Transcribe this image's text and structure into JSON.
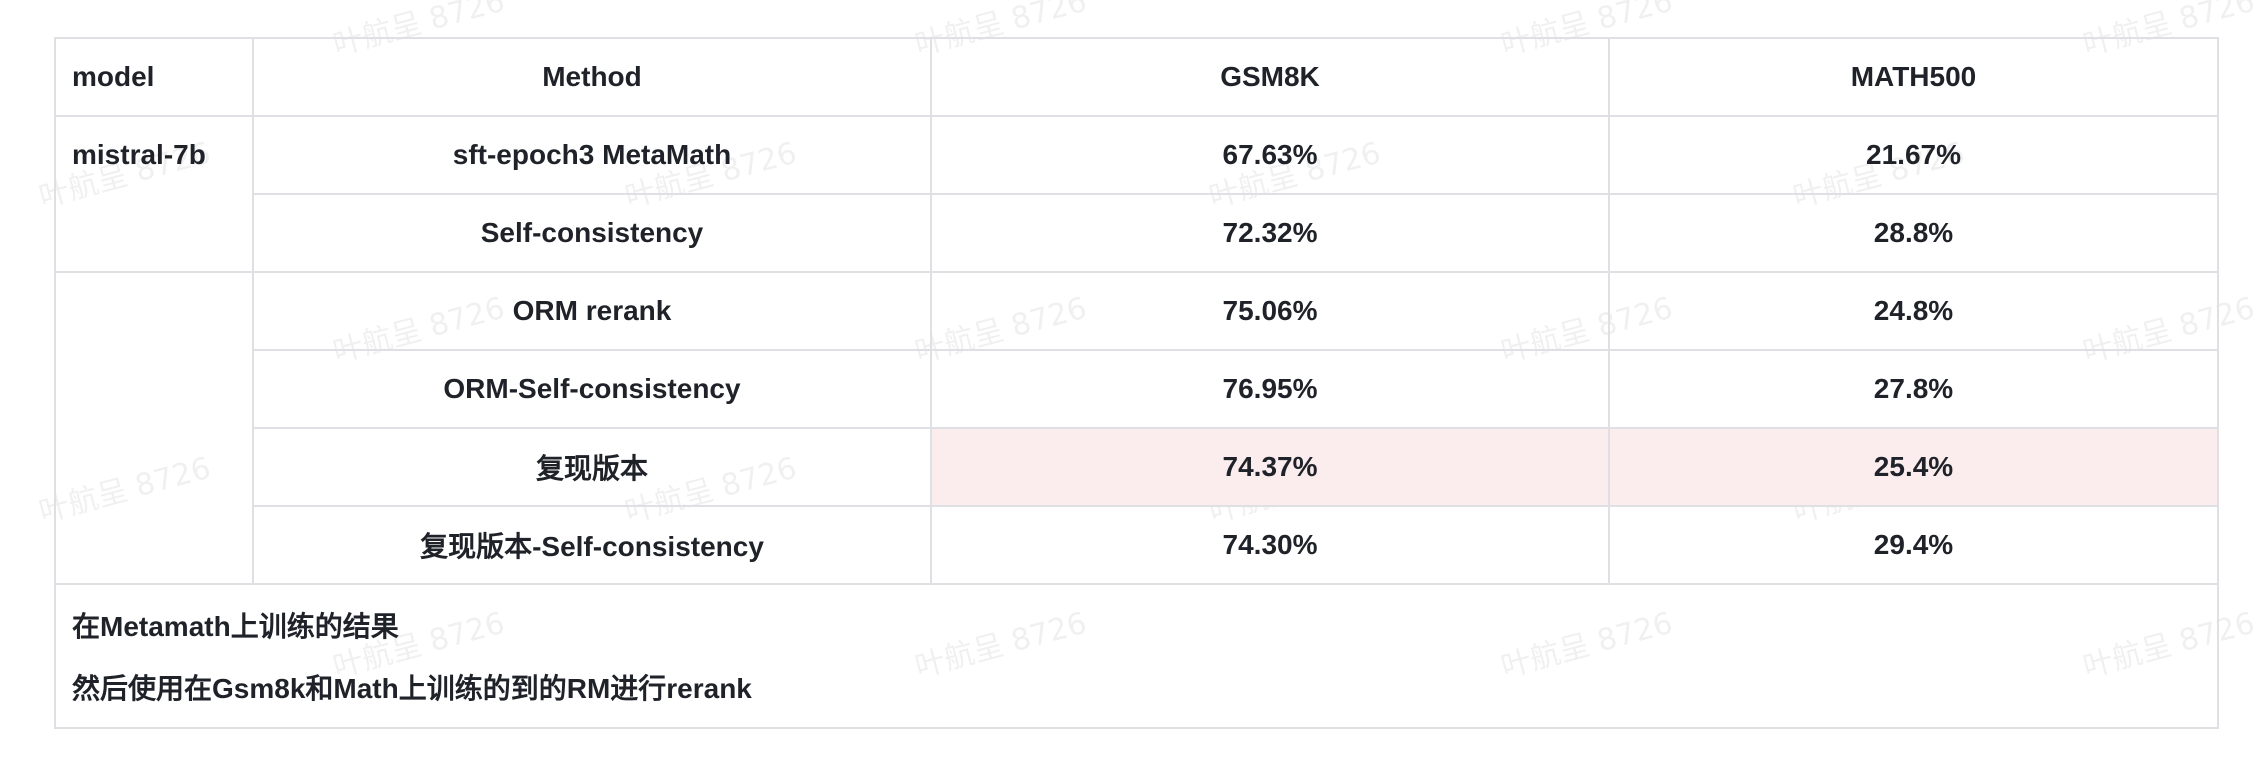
{
  "table": {
    "headers": [
      "model",
      "Method",
      "GSM8K",
      "MATH500"
    ],
    "model_label": "mistral-7b",
    "rows": [
      {
        "method": "sft-epoch3 MetaMath",
        "gsm8k": "67.63%",
        "math500": "21.67%"
      },
      {
        "method": "Self-consistency",
        "gsm8k": "72.32%",
        "math500": "28.8%"
      },
      {
        "method": "ORM rerank",
        "gsm8k": "75.06%",
        "math500": "24.8%"
      },
      {
        "method": "ORM-Self-consistency",
        "gsm8k": "76.95%",
        "math500": "27.8%"
      },
      {
        "method": "复现版本",
        "gsm8k": "74.37%",
        "math500": "25.4%"
      },
      {
        "method": "复现版本-Self-consistency",
        "gsm8k": "74.30%",
        "math500": "29.4%"
      }
    ],
    "notes": [
      "在Metamath上训练的结果",
      "然后使用在Gsm8k和Math上训练的到的RM进行rerank"
    ]
  },
  "watermark": {
    "text": "叶航呈 8726"
  },
  "colors": {
    "highlight_bg": "#fbeded",
    "border": "#dee0e3",
    "text": "#1f2329"
  }
}
